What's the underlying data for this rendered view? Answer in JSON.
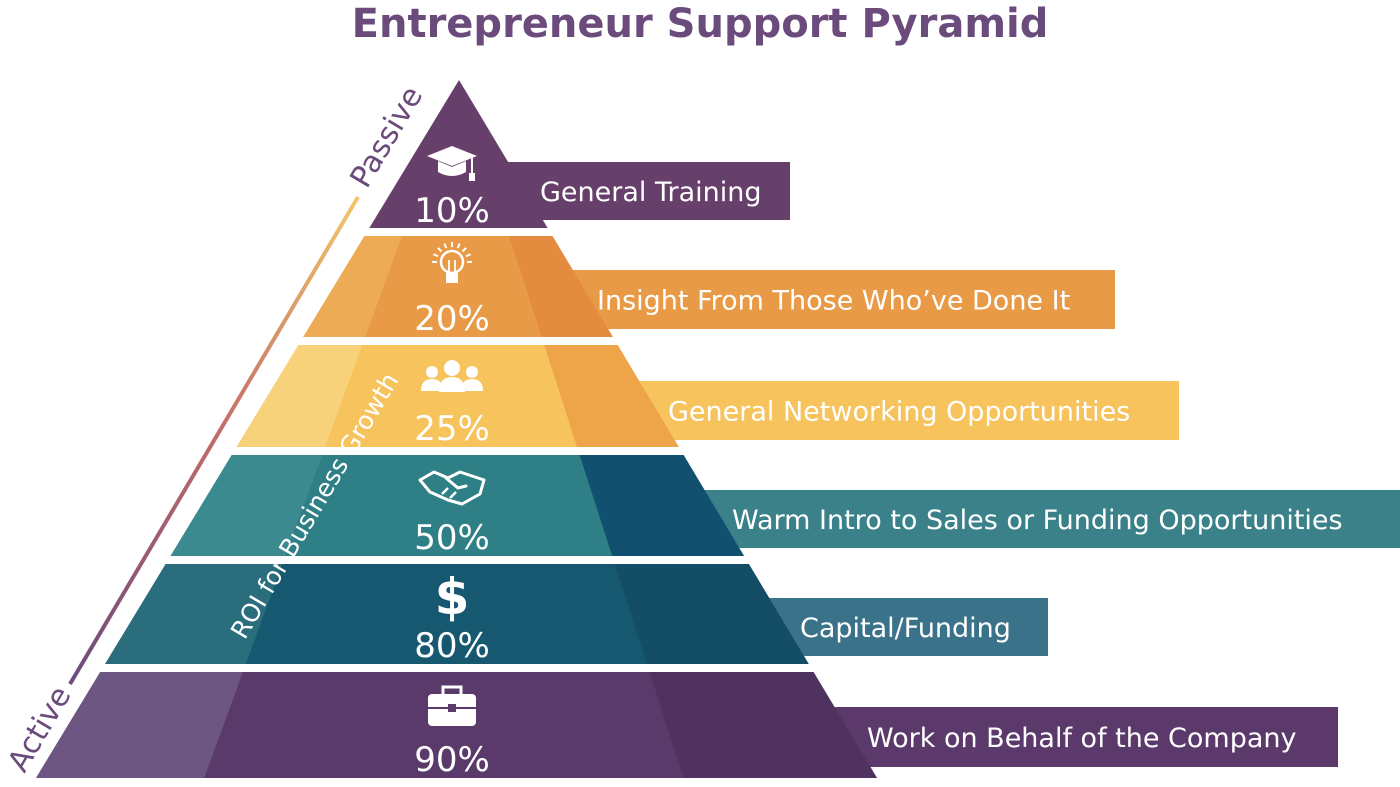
{
  "title": "Entrepreneur Support Pyramid",
  "axis": {
    "top_label": "Passive",
    "bottom_label": "Active",
    "middle_label": "ROI for Business Growth"
  },
  "tiers": [
    {
      "percent": "10%",
      "label": "General Training",
      "icon": "graduation-cap-icon",
      "color": "#673f6b",
      "shade": "#5c3662",
      "light": "#673f6b",
      "bar": "#673f6b"
    },
    {
      "percent": "20%",
      "label": "Insight From Those Who’ve Done It",
      "icon": "lightbulb-icon",
      "color": "#e99a46",
      "shade": "#e38b3f",
      "light": "#eeab56",
      "bar": "#e99a46"
    },
    {
      "percent": "25%",
      "label": "General Networking Opportunities",
      "icon": "people-group-icon",
      "color": "#f7c35c",
      "shade": "#eea449",
      "light": "#f8d27a",
      "bar": "#f7c35c"
    },
    {
      "percent": "50%",
      "label": "Warm Intro to Sales or Funding Opportunities",
      "icon": "handshake-icon",
      "color": "#2f7f86",
      "shade": "#11506e",
      "light": "#3b8a8f",
      "bar": "#3a8189"
    },
    {
      "percent": "80%",
      "label": "Capital/Funding",
      "icon": "dollar-sign-icon",
      "color": "#16586f",
      "shade": "#134e66",
      "light": "#2a6e7e",
      "bar": "#3a7389"
    },
    {
      "percent": "90%",
      "label": "Work on Behalf of the Company",
      "icon": "briefcase-icon",
      "color": "#5a3a6b",
      "shade": "#4f3260",
      "light": "#6e5683",
      "bar": "#5b3a6b"
    }
  ]
}
